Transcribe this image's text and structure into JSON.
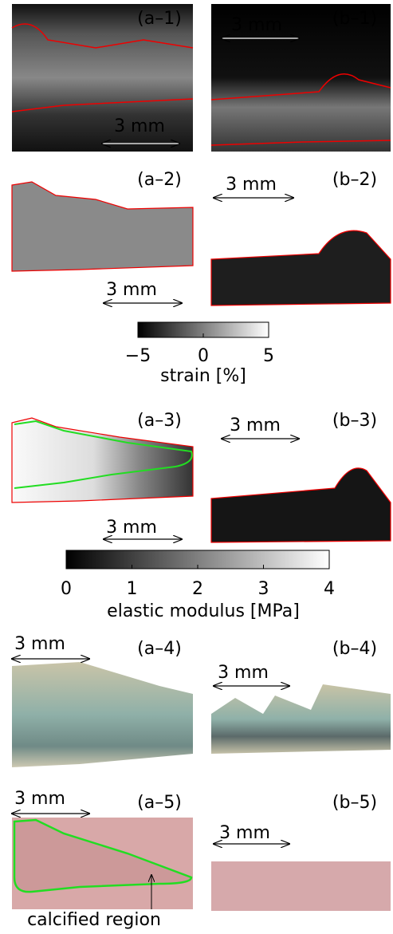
{
  "panel_labels": [
    "(a–1)",
    "(b–1)",
    "(a–2)",
    "(b–2)",
    "(a–3)",
    "(b–3)",
    "(a–4)",
    "(b–4)",
    "(a–5)",
    "(b–5)"
  ],
  "scale_bars": [
    "3 mm",
    "3 mm",
    "3 mm",
    "3 mm",
    "3 mm",
    "3 mm",
    "3 mm",
    "3 mm",
    "3 mm",
    "3 mm"
  ],
  "colorbars": [
    {
      "label": "strain [%]",
      "lim": [
        -5,
        5
      ],
      "ticks": [
        {
          "value": -5,
          "label": "−5"
        },
        0,
        5
      ]
    },
    {
      "label": "elastic modulus [MPa]",
      "lim": [
        0,
        4
      ],
      "ticks": [
        0,
        1,
        2,
        3,
        4
      ]
    }
  ],
  "annotation": "calcified region"
}
